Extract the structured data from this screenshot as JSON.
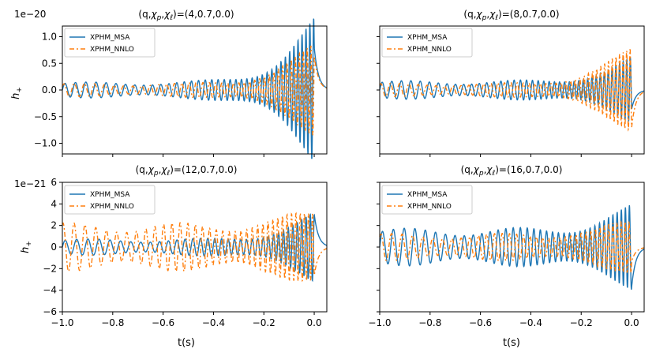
{
  "figure": {
    "xlabel": "t(s)",
    "ylabel": "h",
    "ylabel_sub": "+"
  },
  "chart_data": [
    {
      "type": "line",
      "title_prefix": "(q,",
      "title_chi": "χ",
      "title_sub_p": "p",
      "title_sep": ",",
      "title_sub_l": "ℓ",
      "title_values": ")=(4,0.7,0.0)",
      "xlim": [
        -1.0,
        0.05
      ],
      "ylim": [
        -1.2,
        1.2
      ],
      "scale_text": "1e−20",
      "yticks": [
        -1.0,
        -0.5,
        0.0,
        0.5,
        1.0
      ],
      "yticklabels": [
        "−1.0",
        "−0.5",
        "0.0",
        "0.5",
        "1.0"
      ],
      "xticks": [
        -1.0,
        -0.8,
        -0.6,
        -0.4,
        -0.2,
        0.0
      ],
      "xticklabels": [],
      "series": [
        {
          "name": "XPHM_MSA",
          "color": "#1f77b4",
          "dash": "",
          "amp_start": 0.12,
          "amp_peak": 1.1,
          "cycles": 24,
          "phase": 0.0
        },
        {
          "name": "XPHM_NNLO",
          "color": "#ff7f0e",
          "dash": "6,3,2,3",
          "amp_start": 0.1,
          "amp_peak": 0.75,
          "cycles": 24.4,
          "phase": 0.6
        }
      ]
    },
    {
      "type": "line",
      "title_prefix": "(q,",
      "title_chi": "χ",
      "title_sub_p": "p",
      "title_sep": ",",
      "title_sub_l": "ℓ",
      "title_values": ")=(8,0.7,0.0)",
      "xlim": [
        -1.0,
        0.05
      ],
      "ylim": [
        -1.2,
        1.2
      ],
      "scale_text": "",
      "yticks": [
        -1.0,
        -0.5,
        0.0,
        0.5,
        1.0
      ],
      "yticklabels": [],
      "xticks": [
        -1.0,
        -0.8,
        -0.6,
        -0.4,
        -0.2,
        0.0
      ],
      "xticklabels": [],
      "series": [
        {
          "name": "XPHM_MSA",
          "color": "#1f77b4",
          "dash": "",
          "amp_start": 0.14,
          "amp_peak": 0.5,
          "cycles": 26,
          "phase": 0.0
        },
        {
          "name": "XPHM_NNLO",
          "color": "#ff7f0e",
          "dash": "6,3,2,3",
          "amp_start": 0.1,
          "amp_peak": 0.7,
          "cycles": 26.6,
          "phase": 0.8
        }
      ]
    },
    {
      "type": "line",
      "title_prefix": "(q,",
      "title_chi": "χ",
      "title_sub_p": "p",
      "title_sep": ",",
      "title_sub_l": "ℓ",
      "title_values": ")=(12,0.7,0.0)",
      "xlim": [
        -1.0,
        0.05
      ],
      "ylim": [
        -6,
        6
      ],
      "scale_text": "1e−21",
      "yticks": [
        -6,
        -4,
        -2,
        0,
        2,
        4,
        6
      ],
      "yticklabels": [
        "−6",
        "−4",
        "−2",
        "0",
        "2",
        "4",
        "6"
      ],
      "xticks": [
        -1.0,
        -0.8,
        -0.6,
        -0.4,
        -0.2,
        0.0
      ],
      "xticklabels": [
        "−1.0",
        "−0.8",
        "−0.6",
        "−0.4",
        "−0.2",
        "0.0"
      ],
      "series": [
        {
          "name": "XPHM_MSA",
          "color": "#1f77b4",
          "dash": "",
          "amp_start": 0.6,
          "amp_peak": 2.6,
          "cycles": 22,
          "phase": 0.0
        },
        {
          "name": "XPHM_NNLO",
          "color": "#ff7f0e",
          "dash": "6,3,2,3",
          "amp_start": 1.8,
          "amp_peak": 3.0,
          "cycles": 22.8,
          "phase": 1.2
        }
      ]
    },
    {
      "type": "line",
      "title_prefix": "(q,",
      "title_chi": "χ",
      "title_sub_p": "p",
      "title_sep": ",",
      "title_sub_l": "ℓ",
      "title_values": ")=(16,0.7,0.0)",
      "xlim": [
        -1.0,
        0.05
      ],
      "ylim": [
        -6,
        6
      ],
      "scale_text": "",
      "yticks": [
        -6,
        -4,
        -2,
        0,
        2,
        4,
        6
      ],
      "yticklabels": [],
      "xticks": [
        -1.0,
        -0.8,
        -0.6,
        -0.4,
        -0.2,
        0.0
      ],
      "xticklabels": [
        "−1.0",
        "−0.8",
        "−0.6",
        "−0.4",
        "−0.2",
        "0.0"
      ],
      "series": [
        {
          "name": "XPHM_MSA",
          "color": "#1f77b4",
          "dash": "",
          "amp_start": 1.4,
          "amp_peak": 3.2,
          "cycles": 23,
          "phase": 0.0
        },
        {
          "name": "XPHM_NNLO",
          "color": "#ff7f0e",
          "dash": "6,3,2,3",
          "amp_start": 1.0,
          "amp_peak": 2.2,
          "cycles": 23.6,
          "phase": 0.9
        }
      ]
    }
  ]
}
